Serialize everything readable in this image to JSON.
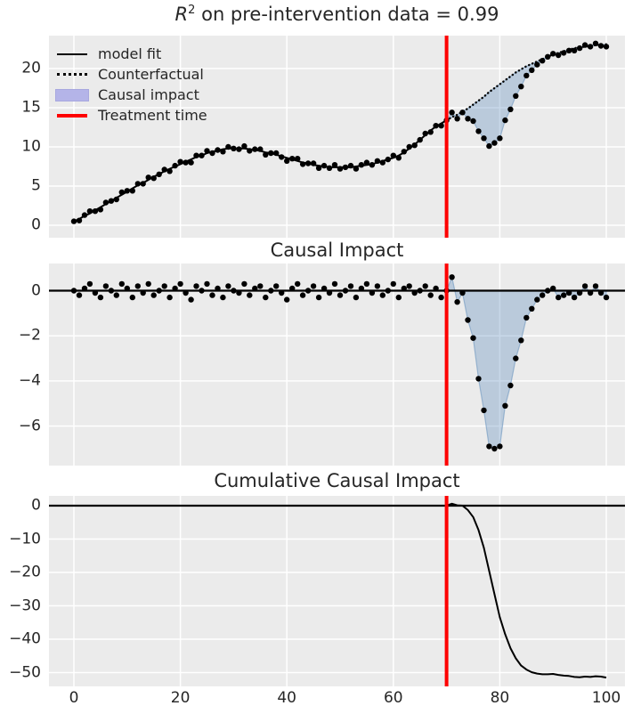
{
  "titles": {
    "top_math": "R",
    "top_sup": "2",
    "top_rest": " on pre-intervention data = 0.99",
    "middle": "Causal Impact",
    "bottom": "Cumulative Causal Impact"
  },
  "legend": [
    {
      "label": "model fit",
      "sample": "solid-black-line"
    },
    {
      "label": "Counterfactual",
      "sample": "dotted-black-line"
    },
    {
      "label": "Causal impact",
      "sample": "lavender-patch"
    },
    {
      "label": "Treatment time",
      "sample": "thick-red-line"
    }
  ],
  "colors": {
    "panel_background": "#ebebeb",
    "grid": "#ffffff",
    "text": "#262626",
    "line_black": "#000000",
    "treatment_red": "#fe0000",
    "fill_blue": "#4a7fb5",
    "legend_patch": "#b4b4e8"
  },
  "chart_data": [
    {
      "type": "line+scatter+fill",
      "title": "R^2 on pre-intervention data = 0.99",
      "x_range": {
        "start": 0,
        "end": 100,
        "step": 1
      },
      "treatment_time": 70,
      "xticks": [
        0,
        20,
        40,
        60,
        80,
        100
      ],
      "yticks": [
        0,
        5,
        10,
        15,
        20
      ],
      "ylim": [
        -1.6,
        24.2
      ],
      "xlim": [
        -4.7,
        103.5
      ],
      "legend_position": "upper left",
      "series": [
        {
          "name": "model fit",
          "type": "line",
          "x_start": 0,
          "values": [
            0.5,
            0.8,
            1.2,
            1.5,
            1.9,
            2.3,
            2.7,
            3.1,
            3.5,
            3.9,
            4.3,
            4.7,
            5.1,
            5.4,
            5.8,
            6.2,
            6.5,
            6.9,
            7.2,
            7.5,
            7.8,
            8.1,
            8.4,
            8.7,
            8.9,
            9.2,
            9.4,
            9.5,
            9.7,
            9.8,
            9.8,
            9.8,
            9.8,
            9.7,
            9.6,
            9.5,
            9.3,
            9.2,
            9.0,
            8.8,
            8.6,
            8.4,
            8.2,
            8.0,
            7.9,
            7.7,
            7.6,
            7.5,
            7.4,
            7.4,
            7.4,
            7.4,
            7.4,
            7.5,
            7.6,
            7.7,
            7.8,
            8.0,
            8.2,
            8.4,
            8.6,
            8.9,
            9.3,
            9.8,
            10.3,
            10.9,
            11.5,
            12.1,
            12.6,
            13.0,
            13.4
          ]
        },
        {
          "name": "Counterfactual",
          "type": "dotted-line",
          "x_start": 70,
          "values": [
            13.4,
            13.8,
            14.1,
            14.5,
            14.9,
            15.4,
            15.9,
            16.4,
            17.0,
            17.5,
            18.0,
            18.5,
            19.0,
            19.5,
            19.9,
            20.3,
            20.6,
            20.9,
            21.2,
            21.5,
            21.8,
            22.0,
            22.2,
            22.4,
            22.6,
            22.7,
            22.8,
            22.9,
            23.0,
            23.0,
            23.1
          ]
        },
        {
          "name": "observed",
          "type": "scatter",
          "x_start": 0,
          "values": [
            0.5,
            0.6,
            1.3,
            1.8,
            1.8,
            2.0,
            2.9,
            3.1,
            3.3,
            4.2,
            4.4,
            4.4,
            5.3,
            5.3,
            6.1,
            6.0,
            6.5,
            7.1,
            6.9,
            7.6,
            8.1,
            8.0,
            8.0,
            8.9,
            8.9,
            9.5,
            9.2,
            9.6,
            9.4,
            10.0,
            9.8,
            9.7,
            10.1,
            9.5,
            9.7,
            9.7,
            9.0,
            9.2,
            9.2,
            8.7,
            8.2,
            8.5,
            8.5,
            7.8,
            7.9,
            7.9,
            7.3,
            7.6,
            7.3,
            7.7,
            7.2,
            7.4,
            7.6,
            7.2,
            7.7,
            8.0,
            7.7,
            8.2,
            8.0,
            8.4,
            8.9,
            8.6,
            9.4,
            10.0,
            10.2,
            10.9,
            11.7,
            11.9,
            12.7,
            12.7,
            13.4,
            14.4,
            13.6,
            14.4,
            13.6,
            13.3,
            12.0,
            11.1,
            10.1,
            10.5,
            11.1,
            13.4,
            14.8,
            16.5,
            17.7,
            19.1,
            19.8,
            20.5,
            21.0,
            21.5,
            21.9,
            21.7,
            22.0,
            22.3,
            22.3,
            22.6,
            23.0,
            22.8,
            23.2,
            22.9,
            22.8
          ]
        },
        {
          "name": "Causal impact",
          "type": "fill-between",
          "between": [
            "Counterfactual",
            "observed"
          ],
          "x_start": 70
        },
        {
          "name": "Treatment time",
          "type": "vline",
          "x": 70
        }
      ]
    },
    {
      "type": "scatter+fill",
      "title": "Causal Impact",
      "x_range": {
        "start": 0,
        "end": 100,
        "step": 1
      },
      "treatment_time": 70,
      "xticks": [
        0,
        20,
        40,
        60,
        80,
        100
      ],
      "yticks": [
        0,
        -2,
        -4,
        -6
      ],
      "ylim": [
        -7.8,
        1.2
      ],
      "xlim": [
        -4.7,
        103.5
      ],
      "series": [
        {
          "name": "pointwise impact",
          "type": "scatter",
          "x_start": 0,
          "values": [
            0.0,
            -0.2,
            0.1,
            0.3,
            -0.1,
            -0.3,
            0.2,
            0.0,
            -0.2,
            0.3,
            0.1,
            -0.3,
            0.2,
            -0.1,
            0.3,
            -0.2,
            0.0,
            0.2,
            -0.3,
            0.1,
            0.3,
            -0.1,
            -0.4,
            0.2,
            0.0,
            0.3,
            -0.2,
            0.1,
            -0.3,
            0.2,
            0.0,
            -0.1,
            0.3,
            -0.2,
            0.1,
            0.2,
            -0.3,
            0.0,
            0.2,
            -0.1,
            -0.4,
            0.1,
            0.3,
            -0.2,
            0.0,
            0.2,
            -0.3,
            0.1,
            -0.1,
            0.3,
            -0.2,
            0.0,
            0.2,
            -0.3,
            0.1,
            0.3,
            -0.1,
            0.2,
            -0.2,
            0.0,
            0.3,
            -0.3,
            0.1,
            0.2,
            -0.1,
            0.0,
            0.2,
            -0.2,
            0.1,
            -0.3,
            0.0,
            0.6,
            -0.5,
            -0.1,
            -1.3,
            -2.1,
            -3.9,
            -5.3,
            -6.9,
            -7.0,
            -6.9,
            -5.1,
            -4.2,
            -3.0,
            -2.2,
            -1.2,
            -0.8,
            -0.4,
            -0.2,
            0.0,
            0.1,
            -0.3,
            -0.2,
            -0.1,
            -0.3,
            -0.1,
            0.2,
            -0.1,
            0.2,
            -0.1,
            -0.3
          ]
        },
        {
          "name": "zero line",
          "type": "hline",
          "y": 0
        },
        {
          "name": "impact fill",
          "type": "fill-to-zero",
          "x_start": 70
        },
        {
          "name": "Treatment time",
          "type": "vline",
          "x": 70
        }
      ]
    },
    {
      "type": "line",
      "title": "Cumulative Causal Impact",
      "x_range": {
        "start": 0,
        "end": 100,
        "step": 1
      },
      "treatment_time": 70,
      "xticks": [
        0,
        20,
        40,
        60,
        80,
        100
      ],
      "yticks": [
        0,
        -10,
        -20,
        -30,
        -40,
        -50
      ],
      "ylim": [
        -54.0,
        2.9
      ],
      "xlim": [
        -4.7,
        103.5
      ],
      "series": [
        {
          "name": "cumulative impact",
          "type": "line",
          "x_start": 0,
          "values": [
            0,
            0,
            0,
            0,
            0,
            0,
            0,
            0,
            0,
            0,
            0,
            0,
            0,
            0,
            0,
            0,
            0,
            0,
            0,
            0,
            0,
            0,
            0,
            0,
            0,
            0,
            0,
            0,
            0,
            0,
            0,
            0,
            0,
            0,
            0,
            0,
            0,
            0,
            0,
            0,
            0,
            0,
            0,
            0,
            0,
            0,
            0,
            0,
            0,
            0,
            0,
            0,
            0,
            0,
            0,
            0,
            0,
            0,
            0,
            0,
            0,
            0,
            0,
            0,
            0,
            0,
            0,
            0,
            0,
            0,
            0,
            0.6,
            0.1,
            0.0,
            -1.3,
            -3.4,
            -7.3,
            -12.6,
            -19.5,
            -26.5,
            -33.4,
            -38.5,
            -42.7,
            -45.7,
            -47.9,
            -49.1,
            -49.9,
            -50.3,
            -50.5,
            -50.5,
            -50.4,
            -50.7,
            -50.9,
            -51.0,
            -51.3,
            -51.4,
            -51.2,
            -51.3,
            -51.1,
            -51.2,
            -51.5
          ]
        },
        {
          "name": "zero line",
          "type": "hline",
          "y": 0
        },
        {
          "name": "Treatment time",
          "type": "vline",
          "x": 70
        }
      ]
    }
  ]
}
